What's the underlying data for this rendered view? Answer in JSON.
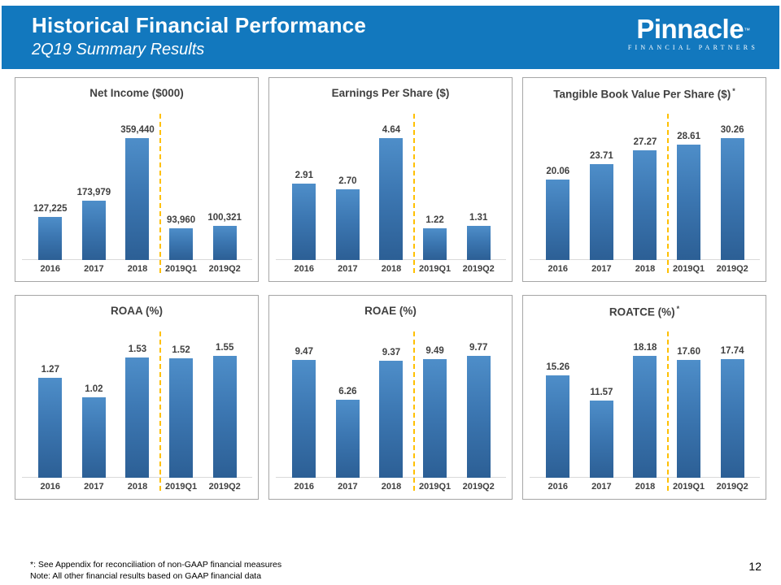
{
  "header": {
    "title": "Historical Financial Performance",
    "subtitle": "2Q19 Summary Results",
    "background_color": "#1278BE",
    "logo": {
      "name": "Pinnacle",
      "tm": "™",
      "tagline": "FINANCIAL PARTNERS"
    }
  },
  "footer": {
    "footnote1": "*: See Appendix for reconciliation of non-GAAP financial measures",
    "footnote2": "Note: All other financial results based on GAAP financial data",
    "page_number": "12"
  },
  "colors": {
    "bar_gradient_top": "#4E8EC9",
    "bar_gradient_bottom": "#2C5F95",
    "divider_line": "#FFC000",
    "chart_text": "#404040",
    "panel_border": "#A6A6A6",
    "axis_line": "#D9D9D9"
  },
  "chart_data": [
    {
      "type": "bar",
      "title": "Net Income ($000)",
      "asterisk": false,
      "categories": [
        "2016",
        "2017",
        "2018",
        "2019Q1",
        "2019Q2"
      ],
      "values": [
        127225,
        173979,
        359440,
        93960,
        100321
      ],
      "labels": [
        "127,225",
        "173,979",
        "359,440",
        "93,960",
        "100,321"
      ],
      "divider_after_index": 2,
      "ylim": [
        0,
        359440
      ],
      "grid": false,
      "legend": "none"
    },
    {
      "type": "bar",
      "title": "Earnings Per Share ($)",
      "asterisk": false,
      "categories": [
        "2016",
        "2017",
        "2018",
        "2019Q1",
        "2019Q2"
      ],
      "values": [
        2.91,
        2.7,
        4.64,
        1.22,
        1.31
      ],
      "labels": [
        "2.91",
        "2.70",
        "4.64",
        "1.22",
        "1.31"
      ],
      "divider_after_index": 2,
      "ylim": [
        0,
        4.64
      ],
      "grid": false,
      "legend": "none"
    },
    {
      "type": "bar",
      "title": "Tangible Book Value Per Share ($)",
      "asterisk": true,
      "categories": [
        "2016",
        "2017",
        "2018",
        "2019Q1",
        "2019Q2"
      ],
      "values": [
        20.06,
        23.71,
        27.27,
        28.61,
        30.26
      ],
      "labels": [
        "20.06",
        "23.71",
        "27.27",
        "28.61",
        "30.26"
      ],
      "divider_after_index": 2,
      "ylim": [
        0,
        30.26
      ],
      "grid": false,
      "legend": "none"
    },
    {
      "type": "bar",
      "title": "ROAA (%)",
      "asterisk": false,
      "categories": [
        "2016",
        "2017",
        "2018",
        "2019Q1",
        "2019Q2"
      ],
      "values": [
        1.27,
        1.02,
        1.53,
        1.52,
        1.55
      ],
      "labels": [
        "1.27",
        "1.02",
        "1.53",
        "1.52",
        "1.55"
      ],
      "divider_after_index": 2,
      "ylim": [
        0,
        1.55
      ],
      "grid": false,
      "legend": "none"
    },
    {
      "type": "bar",
      "title": "ROAE (%)",
      "asterisk": false,
      "categories": [
        "2016",
        "2017",
        "2018",
        "2019Q1",
        "2019Q2"
      ],
      "values": [
        9.47,
        6.26,
        9.37,
        9.49,
        9.77
      ],
      "labels": [
        "9.47",
        "6.26",
        "9.37",
        "9.49",
        "9.77"
      ],
      "divider_after_index": 2,
      "ylim": [
        0,
        9.77
      ],
      "grid": false,
      "legend": "none"
    },
    {
      "type": "bar",
      "title": "ROATCE (%)",
      "asterisk": true,
      "categories": [
        "2016",
        "2017",
        "2018",
        "2019Q1",
        "2019Q2"
      ],
      "values": [
        15.26,
        11.57,
        18.18,
        17.6,
        17.74
      ],
      "labels": [
        "15.26",
        "11.57",
        "18.18",
        "17.60",
        "17.74"
      ],
      "divider_after_index": 2,
      "ylim": [
        0,
        18.18
      ],
      "grid": false,
      "legend": "none"
    }
  ]
}
